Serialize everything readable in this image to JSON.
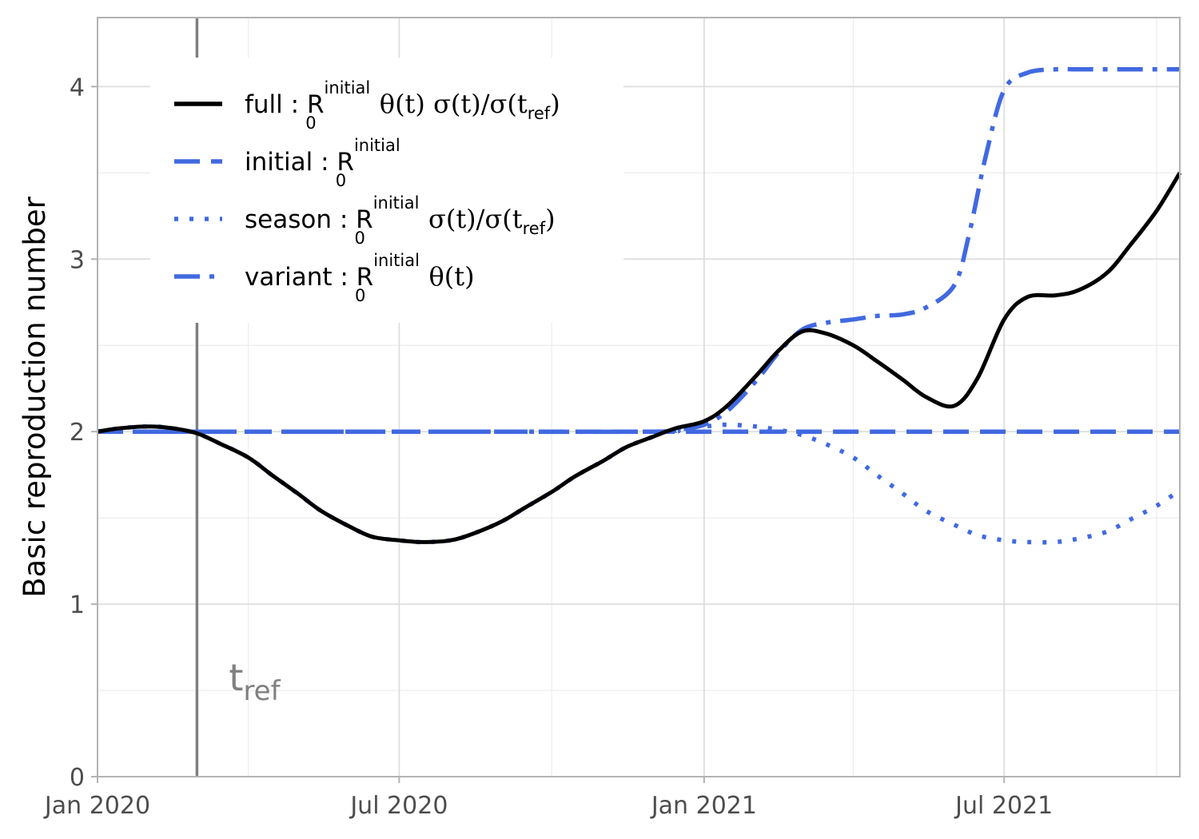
{
  "chart_data": {
    "type": "line",
    "title": "",
    "xlabel": "",
    "ylabel": "Basic reproduction number",
    "xlim": [
      "2020-01-01",
      "2021-10-15"
    ],
    "ylim": [
      0,
      4.4
    ],
    "x_ticks": [
      {
        "value": "2020-01-01",
        "label": "Jan 2020"
      },
      {
        "value": "2020-07-01",
        "label": "Jul 2020"
      },
      {
        "value": "2021-01-01",
        "label": "Jan 2021"
      },
      {
        "value": "2021-07-01",
        "label": "Jul 2021"
      }
    ],
    "y_ticks": [
      0,
      1,
      2,
      3,
      4
    ],
    "grid": true,
    "legend_position": "top-left",
    "reference_line": {
      "x": "2020-03-01",
      "label": "t",
      "label_subscript": "ref",
      "color": "#808080"
    },
    "series": [
      {
        "name": "full",
        "color": "#000000",
        "dash": "solid",
        "legend_formula": {
          "r": "R",
          "sub": "0",
          "sup": "initial",
          "rest": "θ(t) σ(t)/σ(t",
          "rest_sub": "ref",
          "tail": ")"
        },
        "x": [
          "2020-01-01",
          "2020-01-15",
          "2020-02-01",
          "2020-02-15",
          "2020-03-01",
          "2020-03-15",
          "2020-04-01",
          "2020-04-15",
          "2020-05-01",
          "2020-05-15",
          "2020-06-01",
          "2020-06-15",
          "2020-07-01",
          "2020-07-15",
          "2020-08-01",
          "2020-08-15",
          "2020-09-01",
          "2020-09-15",
          "2020-10-01",
          "2020-10-15",
          "2020-11-01",
          "2020-11-15",
          "2020-12-01",
          "2020-12-15",
          "2021-01-01",
          "2021-01-15",
          "2021-02-01",
          "2021-02-15",
          "2021-03-01",
          "2021-03-15",
          "2021-04-01",
          "2021-04-15",
          "2021-05-01",
          "2021-05-15",
          "2021-06-01",
          "2021-06-15",
          "2021-07-01",
          "2021-07-15",
          "2021-08-01",
          "2021-08-15",
          "2021-09-01",
          "2021-09-15",
          "2021-10-01",
          "2021-10-15"
        ],
        "y": [
          2.0,
          2.02,
          2.03,
          2.02,
          1.99,
          1.93,
          1.85,
          1.75,
          1.64,
          1.54,
          1.45,
          1.39,
          1.37,
          1.36,
          1.37,
          1.41,
          1.48,
          1.56,
          1.65,
          1.74,
          1.83,
          1.91,
          1.97,
          2.02,
          2.06,
          2.15,
          2.32,
          2.47,
          2.58,
          2.57,
          2.5,
          2.41,
          2.3,
          2.2,
          2.15,
          2.31,
          2.65,
          2.78,
          2.79,
          2.82,
          2.92,
          3.08,
          3.28,
          3.5
        ]
      },
      {
        "name": "initial",
        "color": "#4169e1",
        "dash": "dashed",
        "legend_formula": {
          "r": "R",
          "sub": "0",
          "sup": "initial",
          "rest": "",
          "rest_sub": "",
          "tail": ""
        },
        "x": [
          "2020-01-01",
          "2021-10-15"
        ],
        "y": [
          2.0,
          2.0
        ]
      },
      {
        "name": "season",
        "color": "#4169e1",
        "dash": "dotted",
        "legend_formula": {
          "r": "R",
          "sub": "0",
          "sup": "initial",
          "rest": "σ(t)/σ(t",
          "rest_sub": "ref",
          "tail": ")"
        },
        "x": [
          "2020-01-01",
          "2020-01-15",
          "2020-02-01",
          "2020-02-15",
          "2020-03-01",
          "2020-03-15",
          "2020-04-01",
          "2020-04-15",
          "2020-05-01",
          "2020-05-15",
          "2020-06-01",
          "2020-06-15",
          "2020-07-01",
          "2020-07-15",
          "2020-08-01",
          "2020-08-15",
          "2020-09-01",
          "2020-09-15",
          "2020-10-01",
          "2020-10-15",
          "2020-11-01",
          "2020-11-15",
          "2020-12-01",
          "2020-12-15",
          "2021-01-01",
          "2021-01-15",
          "2021-02-01",
          "2021-02-15",
          "2021-03-01",
          "2021-03-15",
          "2021-04-01",
          "2021-04-15",
          "2021-05-01",
          "2021-05-15",
          "2021-06-01",
          "2021-06-15",
          "2021-07-01",
          "2021-07-15",
          "2021-08-01",
          "2021-08-15",
          "2021-09-01",
          "2021-09-15",
          "2021-10-01",
          "2021-10-15"
        ],
        "y": [
          2.0,
          2.02,
          2.03,
          2.02,
          1.99,
          1.93,
          1.85,
          1.75,
          1.64,
          1.54,
          1.45,
          1.39,
          1.37,
          1.36,
          1.37,
          1.41,
          1.48,
          1.56,
          1.65,
          1.74,
          1.83,
          1.91,
          1.97,
          2.02,
          2.03,
          2.04,
          2.03,
          2.01,
          1.98,
          1.93,
          1.85,
          1.75,
          1.64,
          1.54,
          1.46,
          1.4,
          1.37,
          1.36,
          1.36,
          1.38,
          1.42,
          1.49,
          1.57,
          1.66
        ]
      },
      {
        "name": "variant",
        "color": "#4169e1",
        "dash": "dashdot",
        "legend_formula": {
          "r": "R",
          "sub": "0",
          "sup": "initial",
          "rest": "θ(t)",
          "rest_sub": "",
          "tail": ""
        },
        "x": [
          "2020-01-01",
          "2020-07-01",
          "2020-12-01",
          "2020-12-15",
          "2021-01-01",
          "2021-01-15",
          "2021-02-01",
          "2021-02-15",
          "2021-03-01",
          "2021-03-15",
          "2021-04-01",
          "2021-04-15",
          "2021-05-01",
          "2021-05-15",
          "2021-06-01",
          "2021-06-10",
          "2021-06-20",
          "2021-07-01",
          "2021-07-15",
          "2021-08-01",
          "2021-08-15",
          "2021-09-01",
          "2021-10-15"
        ],
        "y": [
          2.0,
          2.0,
          2.0,
          2.01,
          2.04,
          2.12,
          2.29,
          2.46,
          2.59,
          2.63,
          2.65,
          2.67,
          2.68,
          2.72,
          2.85,
          3.15,
          3.6,
          3.98,
          4.08,
          4.1,
          4.1,
          4.1,
          4.1
        ]
      }
    ]
  }
}
